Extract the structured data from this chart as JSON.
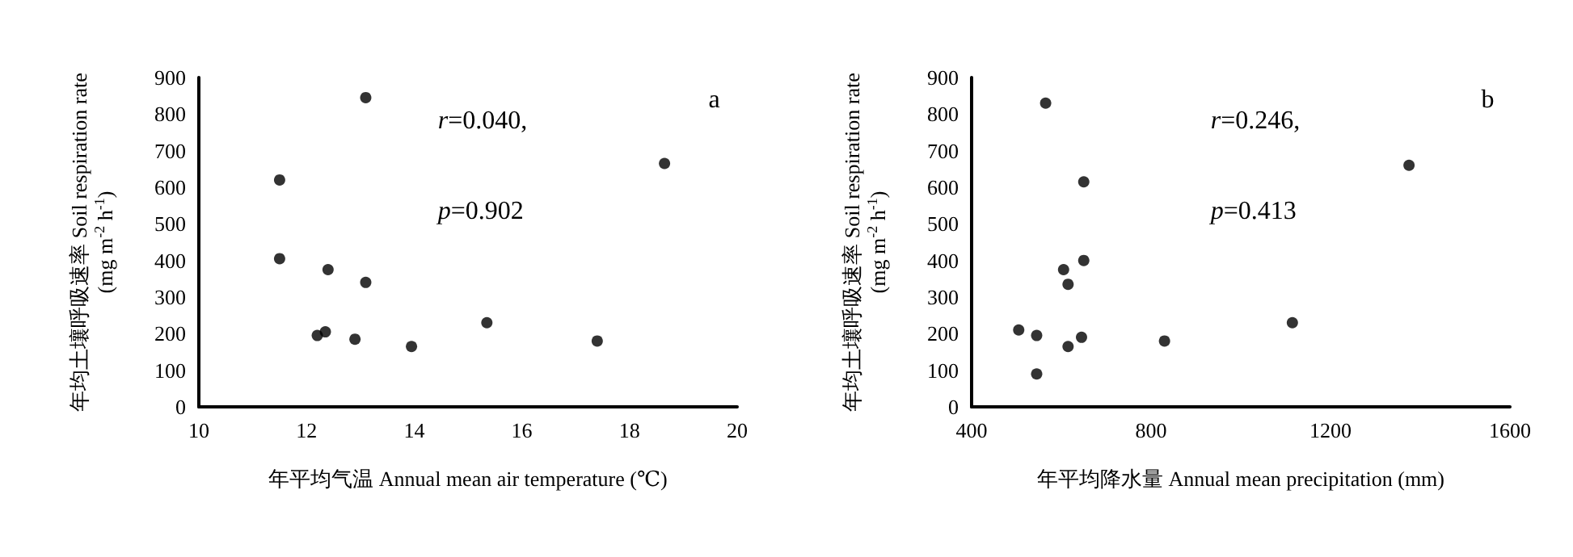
{
  "chart_data": [
    {
      "type": "scatter",
      "xlabel": "年平均气温 Annual mean air temperature (℃)",
      "ylabel": "年均土壤呼吸速率 Soil respiration rate\n(mg m$^{-2}$ h$^{-1}$)",
      "annotations": [
        "r=0.040,",
        "p=0.902",
        "a"
      ],
      "x": [
        11.5,
        11.5,
        12.4,
        13.1,
        13.1,
        12.2,
        12.35,
        12.9,
        13.95,
        15.35,
        17.4,
        18.65
      ],
      "series": [
        {
          "color": "#000000",
          "values": [
            620,
            405,
            375,
            845,
            340,
            195,
            205,
            185,
            165,
            230,
            180,
            665
          ]
        }
      ],
      "xlim": [
        10,
        20
      ],
      "xticks": [
        10,
        12,
        14,
        16,
        18,
        20
      ],
      "ylim": [
        0,
        900
      ],
      "yticks": [
        0,
        100,
        200,
        300,
        400,
        500,
        600,
        700,
        800,
        900
      ],
      "grid": false,
      "marker": "circle"
    },
    {
      "type": "scatter",
      "xlabel": "年平均降水量 Annual mean precipitation (mm)",
      "ylabel": "年均土壤呼吸速率 Soil respiration rate\n(mg m$^{-2}$ h$^{-1}$)",
      "annotations": [
        "r=0.246,",
        "p=0.413",
        "b"
      ],
      "x": [
        565,
        650,
        1375,
        650,
        605,
        615,
        505,
        545,
        645,
        615,
        830,
        1115,
        545
      ],
      "series": [
        {
          "color": "#000000",
          "values": [
            830,
            615,
            660,
            400,
            375,
            335,
            210,
            195,
            190,
            165,
            180,
            230,
            90
          ]
        }
      ],
      "xlim": [
        400,
        1600
      ],
      "xticks": [
        400,
        800,
        1200,
        1600
      ],
      "ylim": [
        0,
        900
      ],
      "yticks": [
        0,
        100,
        200,
        300,
        400,
        500,
        600,
        700,
        800,
        900
      ],
      "grid": false,
      "marker": "circle"
    }
  ]
}
